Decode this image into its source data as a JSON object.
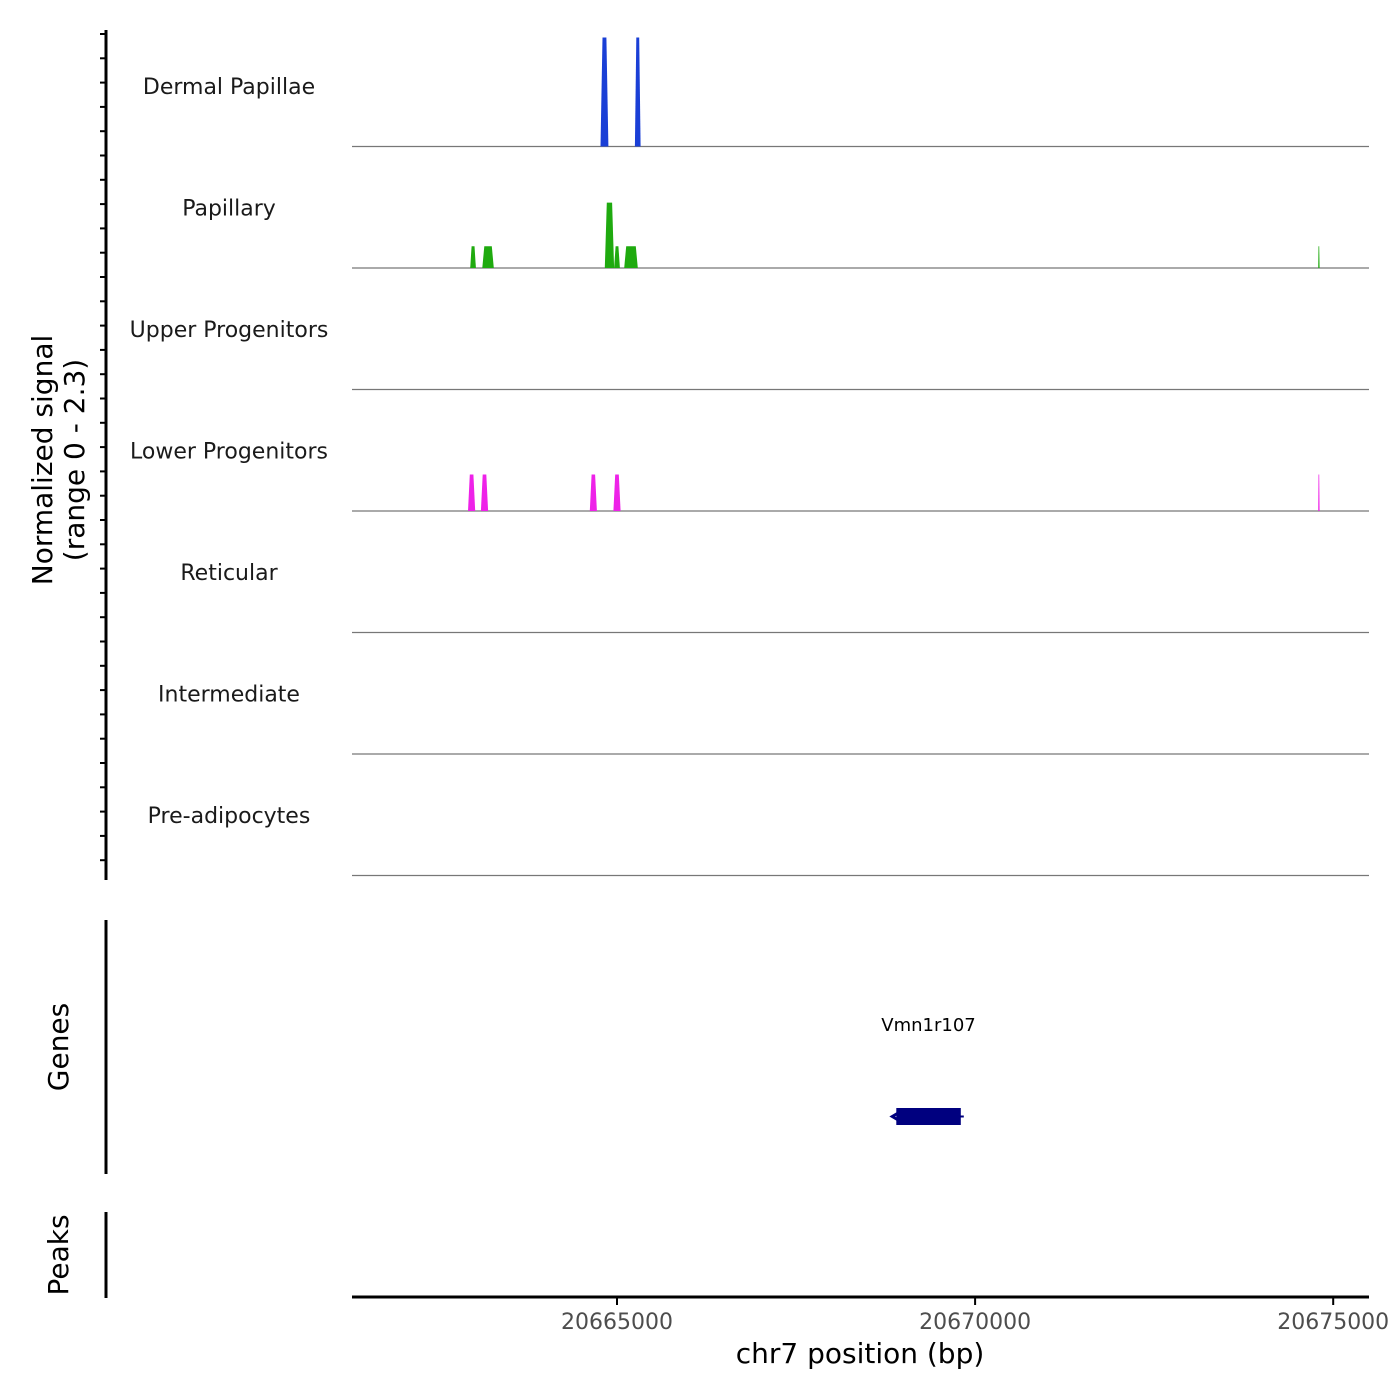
{
  "chart_data": {
    "type": "coverage-track",
    "ylabel": "Normalized signal",
    "ylabel_range": "(range 0 - 2.3)",
    "y_range": [
      0,
      2.3
    ],
    "xlabel": "chr7 position (bp)",
    "x_range": [
      20661300,
      20675500
    ],
    "x_ticks": [
      20665000,
      20670000,
      20675000
    ],
    "x_tick_labels": [
      "20665000",
      "20670000",
      "20675000"
    ],
    "tracks": [
      {
        "name": "Dermal Papillae",
        "color": "#1a3fd6",
        "peaks": [
          {
            "start": 20664770,
            "end": 20664880,
            "value": 2.3
          },
          {
            "start": 20665250,
            "end": 20665330,
            "value": 2.3
          }
        ]
      },
      {
        "name": "Papillary",
        "color": "#1faa0f",
        "peaks": [
          {
            "start": 20662950,
            "end": 20663030,
            "value": 0.46
          },
          {
            "start": 20663120,
            "end": 20663280,
            "value": 0.46
          },
          {
            "start": 20664830,
            "end": 20664960,
            "value": 1.38
          },
          {
            "start": 20664960,
            "end": 20665040,
            "value": 0.46
          },
          {
            "start": 20665100,
            "end": 20665290,
            "value": 0.46
          },
          {
            "start": 20674790,
            "end": 20674810,
            "value": 0.46
          }
        ]
      },
      {
        "name": "Upper Progenitors",
        "color": "#8d0fd6",
        "peaks": []
      },
      {
        "name": "Lower Progenitors",
        "color": "#ee22e8",
        "peaks": [
          {
            "start": 20662920,
            "end": 20663020,
            "value": 0.77
          },
          {
            "start": 20663100,
            "end": 20663200,
            "value": 0.77
          },
          {
            "start": 20664620,
            "end": 20664720,
            "value": 0.77
          },
          {
            "start": 20664950,
            "end": 20665050,
            "value": 0.77
          },
          {
            "start": 20674790,
            "end": 20674810,
            "value": 0.77
          }
        ]
      },
      {
        "name": "Reticular",
        "color": "#e8a30f",
        "peaks": []
      },
      {
        "name": "Intermediate",
        "color": "#0fa8c9",
        "peaks": []
      },
      {
        "name": "Pre-adipocytes",
        "color": "#d62a1a",
        "peaks": []
      }
    ],
    "genes_label": "Genes",
    "genes": [
      {
        "name": "Vmn1r107",
        "start": 20668900,
        "end": 20669800,
        "strand": "-",
        "color": "#00007f"
      }
    ],
    "peaks_label": "Peaks"
  }
}
